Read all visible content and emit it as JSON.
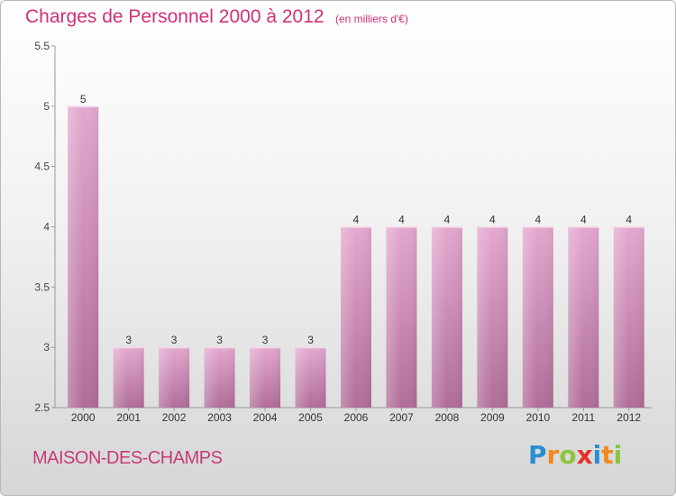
{
  "title": "Charges de Personnel 2000 à 2012",
  "subtitle": "(en milliers d'€)",
  "commune": "MAISON-DES-CHAMPS",
  "logo": {
    "text": "Proxiti",
    "letters": [
      "P",
      "r",
      "o",
      "x",
      "i",
      "t",
      "i"
    ],
    "colors": [
      "#2a8fd0",
      "#f08a1e",
      "#8cc63f",
      "#e6332a",
      "#2a8fd0",
      "#f08a1e",
      "#8cc63f"
    ]
  },
  "colors": {
    "bar": "#d98fbd",
    "text": "#d0307a"
  },
  "chart_data": {
    "type": "bar",
    "title": "Charges de Personnel 2000 à 2012",
    "categories": [
      "2000",
      "2001",
      "2002",
      "2003",
      "2004",
      "2005",
      "2006",
      "2007",
      "2008",
      "2009",
      "2010",
      "2011",
      "2012"
    ],
    "values": [
      5,
      3,
      3,
      3,
      3,
      3,
      4,
      4,
      4,
      4,
      4,
      4,
      4
    ],
    "value_labels": [
      "5",
      "3",
      "3",
      "3",
      "3",
      "3",
      "4",
      "4",
      "4",
      "4",
      "4",
      "4",
      "4"
    ],
    "ylim": [
      2.5,
      5.5
    ],
    "yticks": [
      2.5,
      3,
      3.5,
      4,
      4.5,
      5,
      5.5
    ],
    "ytick_labels": [
      "2.5",
      "3",
      "3.5",
      "4",
      "4.5",
      "5",
      "5.5"
    ],
    "grid": false
  }
}
